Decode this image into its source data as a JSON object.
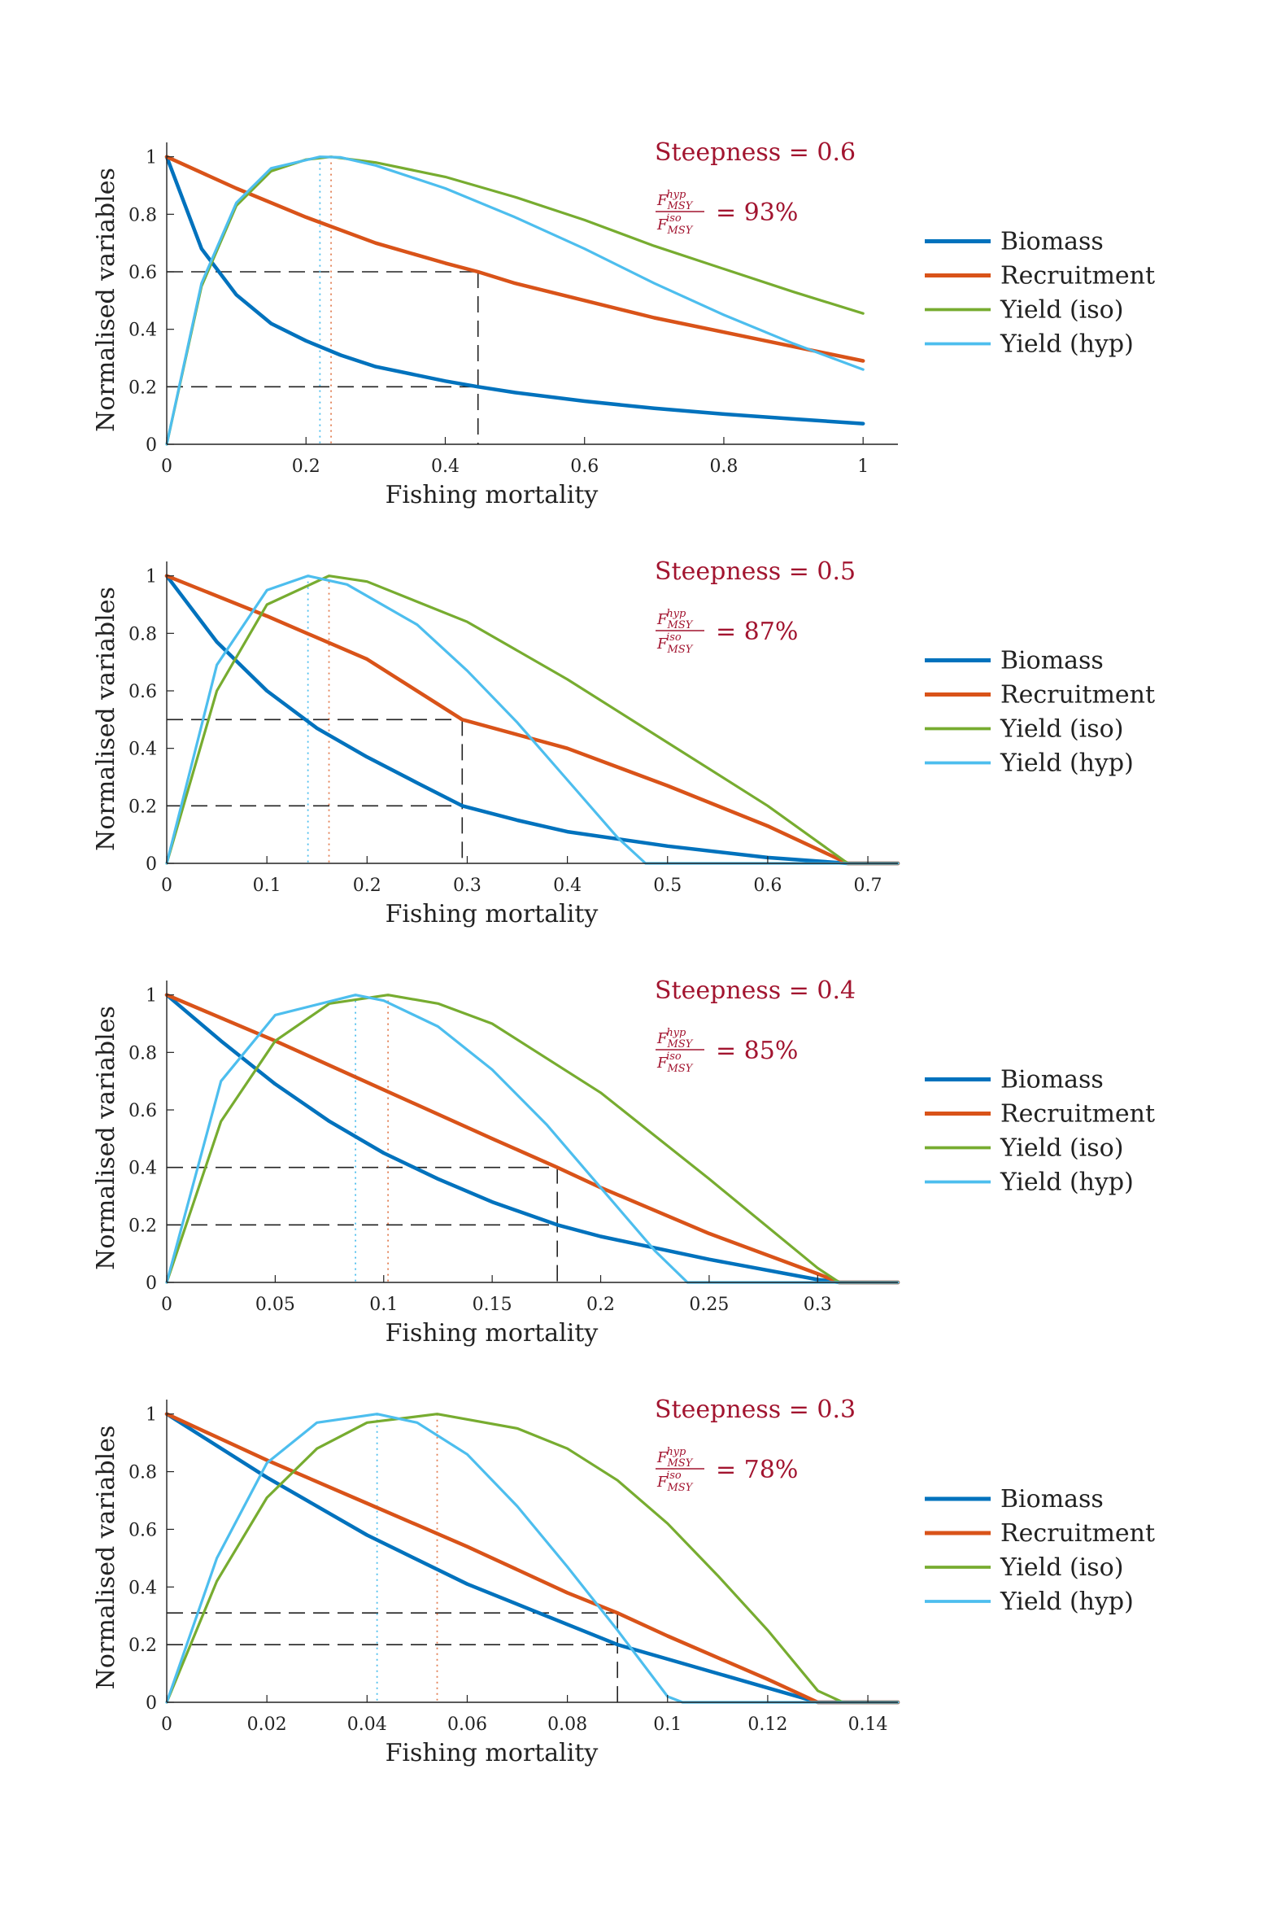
{
  "colors": {
    "biomass": "#0072BD",
    "recruitment": "#D95319",
    "yield_iso": "#77AC30",
    "yield_hyp": "#4DBEEE",
    "annotation": "#A2142F",
    "reference_lines": "#222222"
  },
  "chart_data": [
    {
      "type": "line",
      "title": "",
      "xlabel": "Fishing mortality",
      "ylabel": "Normalised variables",
      "xlim": [
        0,
        1.05
      ],
      "ylim": [
        0,
        1.05
      ],
      "xticks": [
        0,
        0.2,
        0.4,
        0.6,
        0.8,
        1
      ],
      "xtick_labels": [
        "0",
        "0.2",
        "0.4",
        "0.6",
        "0.8",
        "1"
      ],
      "yticks": [
        0,
        0.2,
        0.4,
        0.6,
        0.8,
        1
      ],
      "ytick_labels": [
        "0",
        "0.2",
        "0.4",
        "0.6",
        "0.8",
        "1"
      ],
      "grid": false,
      "legend_position": "right",
      "annotation_title": "Steepness = 0.6",
      "ratio_label": {
        "numerator": "F",
        "numerator_sub": "MSY",
        "numerator_sup": "hyp",
        "denominator": "F",
        "denominator_sub": "MSY",
        "denominator_sup": "iso",
        "value": "= 93%"
      },
      "steepness": 0.6,
      "fmsy_iso": 0.236,
      "fmsy_hyp": 0.22,
      "reference_f": 0.447,
      "reference_levels": [
        0.2,
        0.6
      ],
      "series": [
        {
          "name": "Biomass",
          "x": [
            0,
            0.05,
            0.1,
            0.15,
            0.2,
            0.25,
            0.3,
            0.4,
            0.447,
            0.5,
            0.6,
            0.7,
            0.8,
            0.9,
            1.0
          ],
          "y": [
            1,
            0.68,
            0.52,
            0.42,
            0.36,
            0.31,
            0.27,
            0.22,
            0.2,
            0.18,
            0.15,
            0.125,
            0.105,
            0.088,
            0.072
          ]
        },
        {
          "name": "Recruitment",
          "x": [
            0,
            0.1,
            0.2,
            0.3,
            0.4,
            0.447,
            0.5,
            0.6,
            0.7,
            0.8,
            0.9,
            1.0
          ],
          "y": [
            1,
            0.89,
            0.79,
            0.7,
            0.63,
            0.6,
            0.56,
            0.5,
            0.44,
            0.39,
            0.34,
            0.29
          ]
        },
        {
          "name": "Yield (iso)",
          "x": [
            0,
            0.05,
            0.1,
            0.15,
            0.2,
            0.236,
            0.3,
            0.4,
            0.5,
            0.6,
            0.7,
            0.8,
            0.9,
            1.0
          ],
          "y": [
            0,
            0.55,
            0.83,
            0.95,
            0.99,
            1.0,
            0.98,
            0.93,
            0.86,
            0.78,
            0.69,
            0.61,
            0.53,
            0.455
          ]
        },
        {
          "name": "Yield (hyp)",
          "x": [
            0,
            0.05,
            0.1,
            0.15,
            0.22,
            0.25,
            0.3,
            0.4,
            0.5,
            0.6,
            0.7,
            0.8,
            0.9,
            1.0
          ],
          "y": [
            0,
            0.56,
            0.84,
            0.96,
            1.0,
            0.998,
            0.97,
            0.89,
            0.79,
            0.68,
            0.56,
            0.45,
            0.35,
            0.26
          ]
        }
      ]
    },
    {
      "type": "line",
      "title": "",
      "xlabel": "Fishing mortality",
      "ylabel": "Normalised variables",
      "xlim": [
        0,
        0.73
      ],
      "ylim": [
        0,
        1.05
      ],
      "xticks": [
        0,
        0.1,
        0.2,
        0.3,
        0.4,
        0.5,
        0.6,
        0.7
      ],
      "xtick_labels": [
        "0",
        "0.1",
        "0.2",
        "0.3",
        "0.4",
        "0.5",
        "0.6",
        "0.7"
      ],
      "yticks": [
        0,
        0.2,
        0.4,
        0.6,
        0.8,
        1
      ],
      "ytick_labels": [
        "0",
        "0.2",
        "0.4",
        "0.6",
        "0.8",
        "1"
      ],
      "grid": false,
      "legend_position": "right",
      "annotation_title": "Steepness = 0.5",
      "ratio_label": {
        "numerator": "F",
        "numerator_sub": "MSY",
        "numerator_sup": "hyp",
        "denominator": "F",
        "denominator_sub": "MSY",
        "denominator_sup": "iso",
        "value": "= 87%"
      },
      "steepness": 0.5,
      "fmsy_iso": 0.162,
      "fmsy_hyp": 0.141,
      "reference_f": 0.295,
      "reference_levels": [
        0.2,
        0.5
      ],
      "series": [
        {
          "name": "Biomass",
          "x": [
            0,
            0.05,
            0.1,
            0.15,
            0.2,
            0.25,
            0.295,
            0.35,
            0.4,
            0.5,
            0.6,
            0.68,
            0.73
          ],
          "y": [
            1,
            0.77,
            0.6,
            0.47,
            0.37,
            0.28,
            0.2,
            0.15,
            0.11,
            0.06,
            0.02,
            0.0,
            0.0
          ]
        },
        {
          "name": "Recruitment",
          "x": [
            0,
            0.1,
            0.2,
            0.295,
            0.4,
            0.5,
            0.6,
            0.68,
            0.73
          ],
          "y": [
            1,
            0.86,
            0.71,
            0.5,
            0.4,
            0.27,
            0.13,
            0.0,
            0.0
          ]
        },
        {
          "name": "Yield (iso)",
          "x": [
            0,
            0.05,
            0.1,
            0.162,
            0.2,
            0.3,
            0.4,
            0.5,
            0.6,
            0.68,
            0.73
          ],
          "y": [
            0,
            0.6,
            0.9,
            1.0,
            0.98,
            0.84,
            0.64,
            0.42,
            0.2,
            0.0,
            0.0
          ]
        },
        {
          "name": "Yield (hyp)",
          "x": [
            0,
            0.05,
            0.1,
            0.141,
            0.18,
            0.25,
            0.3,
            0.35,
            0.4,
            0.45,
            0.478,
            0.73
          ],
          "y": [
            0,
            0.69,
            0.95,
            1.0,
            0.97,
            0.83,
            0.67,
            0.49,
            0.29,
            0.09,
            0.0,
            0.0
          ]
        }
      ]
    },
    {
      "type": "line",
      "title": "",
      "xlabel": "Fishing mortality",
      "ylabel": "Normalised variables",
      "xlim": [
        0,
        0.337
      ],
      "ylim": [
        0,
        1.05
      ],
      "xticks": [
        0,
        0.05,
        0.1,
        0.15,
        0.2,
        0.25,
        0.3
      ],
      "xtick_labels": [
        "0",
        "0.05",
        "0.1",
        "0.15",
        "0.2",
        "0.25",
        "0.3"
      ],
      "yticks": [
        0,
        0.2,
        0.4,
        0.6,
        0.8,
        1
      ],
      "ytick_labels": [
        "0",
        "0.2",
        "0.4",
        "0.6",
        "0.8",
        "1"
      ],
      "grid": false,
      "legend_position": "right",
      "annotation_title": "Steepness = 0.4",
      "ratio_label": {
        "numerator": "F",
        "numerator_sub": "MSY",
        "numerator_sup": "hyp",
        "denominator": "F",
        "denominator_sub": "MSY",
        "denominator_sup": "iso",
        "value": "= 85%"
      },
      "steepness": 0.4,
      "fmsy_iso": 0.102,
      "fmsy_hyp": 0.087,
      "reference_f": 0.18,
      "reference_levels": [
        0.2,
        0.4
      ],
      "series": [
        {
          "name": "Biomass",
          "x": [
            0,
            0.025,
            0.05,
            0.075,
            0.1,
            0.125,
            0.15,
            0.18,
            0.2,
            0.25,
            0.3,
            0.31,
            0.337
          ],
          "y": [
            1,
            0.84,
            0.69,
            0.56,
            0.45,
            0.36,
            0.28,
            0.2,
            0.16,
            0.08,
            0.01,
            0.0,
            0.0
          ]
        },
        {
          "name": "Recruitment",
          "x": [
            0,
            0.05,
            0.1,
            0.15,
            0.18,
            0.2,
            0.25,
            0.3,
            0.31,
            0.337
          ],
          "y": [
            1,
            0.84,
            0.67,
            0.5,
            0.4,
            0.33,
            0.17,
            0.03,
            0.0,
            0.0
          ]
        },
        {
          "name": "Yield (iso)",
          "x": [
            0,
            0.025,
            0.05,
            0.075,
            0.102,
            0.125,
            0.15,
            0.2,
            0.25,
            0.3,
            0.31,
            0.337
          ],
          "y": [
            0,
            0.56,
            0.84,
            0.97,
            1.0,
            0.97,
            0.9,
            0.66,
            0.36,
            0.05,
            0.0,
            0.0
          ]
        },
        {
          "name": "Yield (hyp)",
          "x": [
            0,
            0.025,
            0.05,
            0.087,
            0.1,
            0.125,
            0.15,
            0.175,
            0.2,
            0.225,
            0.24,
            0.337
          ],
          "y": [
            0,
            0.7,
            0.93,
            1.0,
            0.98,
            0.89,
            0.74,
            0.55,
            0.33,
            0.11,
            0.0,
            0.0
          ]
        }
      ]
    },
    {
      "type": "line",
      "title": "",
      "xlabel": "Fishing mortality",
      "ylabel": "Normalised variables",
      "xlim": [
        0,
        0.146
      ],
      "ylim": [
        0,
        1.05
      ],
      "xticks": [
        0,
        0.02,
        0.04,
        0.06,
        0.08,
        0.1,
        0.12,
        0.14
      ],
      "xtick_labels": [
        "0",
        "0.02",
        "0.04",
        "0.06",
        "0.08",
        "0.1",
        "0.12",
        "0.14"
      ],
      "yticks": [
        0,
        0.2,
        0.4,
        0.6,
        0.8,
        1
      ],
      "ytick_labels": [
        "0",
        "0.2",
        "0.4",
        "0.6",
        "0.8",
        "1"
      ],
      "grid": false,
      "legend_position": "right",
      "annotation_title": "Steepness = 0.3",
      "ratio_label": {
        "numerator": "F",
        "numerator_sub": "MSY",
        "numerator_sup": "hyp",
        "denominator": "F",
        "denominator_sub": "MSY",
        "denominator_sup": "iso",
        "value": "= 78%"
      },
      "steepness": 0.3,
      "fmsy_iso": 0.054,
      "fmsy_hyp": 0.042,
      "reference_f": 0.09,
      "reference_levels": [
        0.2,
        0.31
      ],
      "series": [
        {
          "name": "Biomass",
          "x": [
            0,
            0.02,
            0.04,
            0.06,
            0.08,
            0.09,
            0.1,
            0.12,
            0.13,
            0.146
          ],
          "y": [
            1,
            0.78,
            0.58,
            0.41,
            0.27,
            0.2,
            0.15,
            0.05,
            0.0,
            0.0
          ]
        },
        {
          "name": "Recruitment",
          "x": [
            0,
            0.02,
            0.04,
            0.06,
            0.08,
            0.09,
            0.1,
            0.12,
            0.13,
            0.146
          ],
          "y": [
            1,
            0.84,
            0.69,
            0.54,
            0.38,
            0.31,
            0.23,
            0.08,
            0.0,
            0.0
          ]
        },
        {
          "name": "Yield (iso)",
          "x": [
            0,
            0.01,
            0.02,
            0.03,
            0.04,
            0.054,
            0.07,
            0.08,
            0.09,
            0.1,
            0.11,
            0.12,
            0.13,
            0.135,
            0.146
          ],
          "y": [
            0,
            0.42,
            0.71,
            0.88,
            0.97,
            1.0,
            0.95,
            0.88,
            0.77,
            0.62,
            0.44,
            0.25,
            0.04,
            0.0,
            0.0
          ]
        },
        {
          "name": "Yield (hyp)",
          "x": [
            0,
            0.01,
            0.02,
            0.03,
            0.042,
            0.05,
            0.06,
            0.07,
            0.08,
            0.09,
            0.1,
            0.103,
            0.146
          ],
          "y": [
            0,
            0.5,
            0.83,
            0.97,
            1.0,
            0.97,
            0.86,
            0.68,
            0.47,
            0.25,
            0.02,
            0.0,
            0.0
          ]
        }
      ]
    }
  ]
}
